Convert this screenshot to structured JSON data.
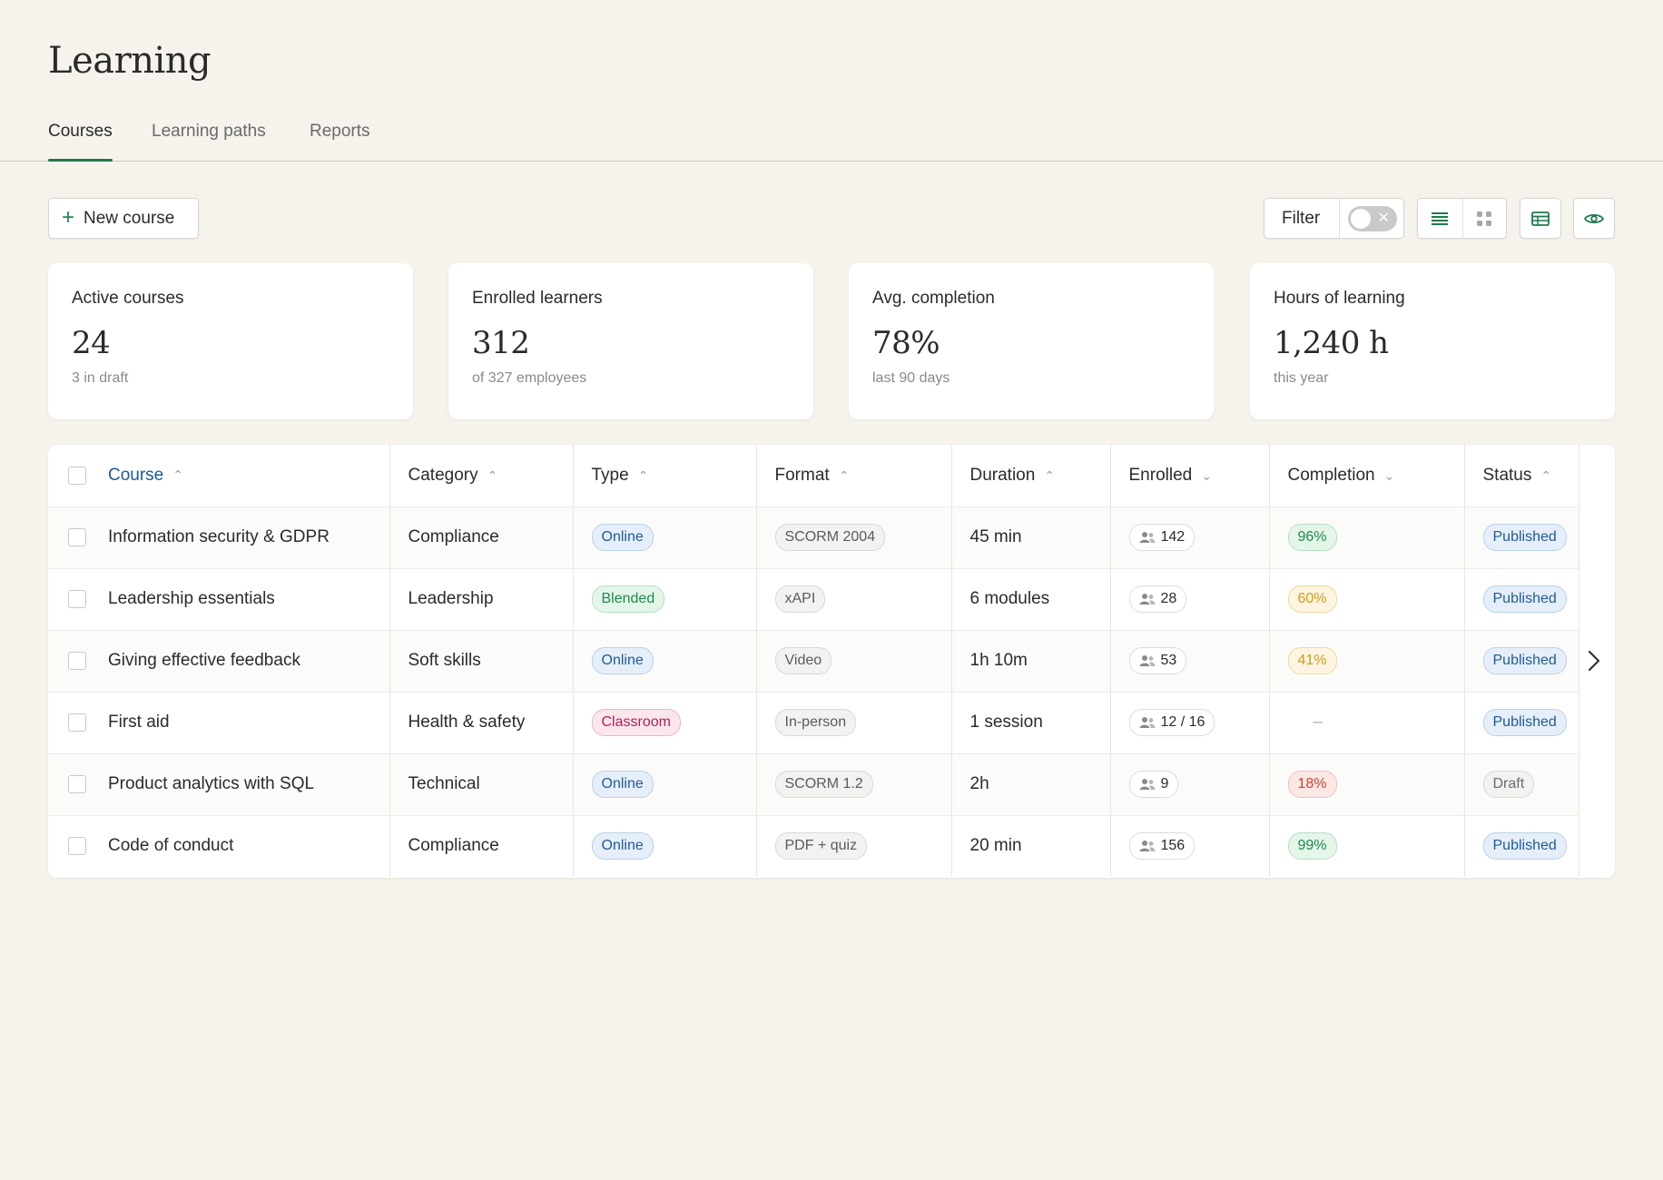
{
  "page": {
    "title": "Learning"
  },
  "tabs": [
    {
      "label": "Courses",
      "active": true
    },
    {
      "label": "Learning paths",
      "active": false
    },
    {
      "label": "Reports",
      "active": false
    }
  ],
  "toolbar": {
    "new_course_label": "New course",
    "filter_label": "Filter",
    "filter_enabled": false
  },
  "stats": [
    {
      "label": "Active courses",
      "value": "24",
      "sub": "3 in draft"
    },
    {
      "label": "Enrolled learners",
      "value": "312",
      "sub": "of 327 employees"
    },
    {
      "label": "Avg. completion",
      "value": "78%",
      "sub": "last 90 days"
    },
    {
      "label": "Hours of learning",
      "value": "1,240 h",
      "sub": "this year"
    }
  ],
  "table": {
    "columns": [
      "Course",
      "Category",
      "Type",
      "Format",
      "Duration",
      "Enrolled",
      "Completion",
      "Status"
    ],
    "rows": [
      {
        "course": "Information security & GDPR",
        "category": "Compliance",
        "type": "Online",
        "format": "SCORM 2004",
        "duration": "45 min",
        "enrolled": "142",
        "completion": "96%",
        "status": "Published"
      },
      {
        "course": "Leadership essentials",
        "category": "Leadership",
        "type": "Blended",
        "format": "xAPI",
        "duration": "6 modules",
        "enrolled": "28",
        "completion": "60%",
        "status": "Published"
      },
      {
        "course": "Giving effective feedback",
        "category": "Soft skills",
        "type": "Online",
        "format": "Video",
        "duration": "1h 10m",
        "enrolled": "53",
        "completion": "41%",
        "status": "Published"
      },
      {
        "course": "First aid",
        "category": "Health & safety",
        "type": "Classroom",
        "format": "In-person",
        "duration": "1 session",
        "enrolled": "12 / 16",
        "completion": "–",
        "status": "Published"
      },
      {
        "course": "Product analytics with SQL",
        "category": "Technical",
        "type": "Online",
        "format": "SCORM 1.2",
        "duration": "2h",
        "enrolled": "9",
        "completion": "18%",
        "status": "Draft"
      },
      {
        "course": "Code of conduct",
        "category": "Compliance",
        "type": "Online",
        "format": "PDF + quiz",
        "duration": "20 min",
        "enrolled": "156",
        "completion": "99%",
        "status": "Published"
      }
    ]
  },
  "colors": {
    "accent": "#1f7a4a",
    "link": "#1e5a9a",
    "background": "#f6f3ed"
  }
}
